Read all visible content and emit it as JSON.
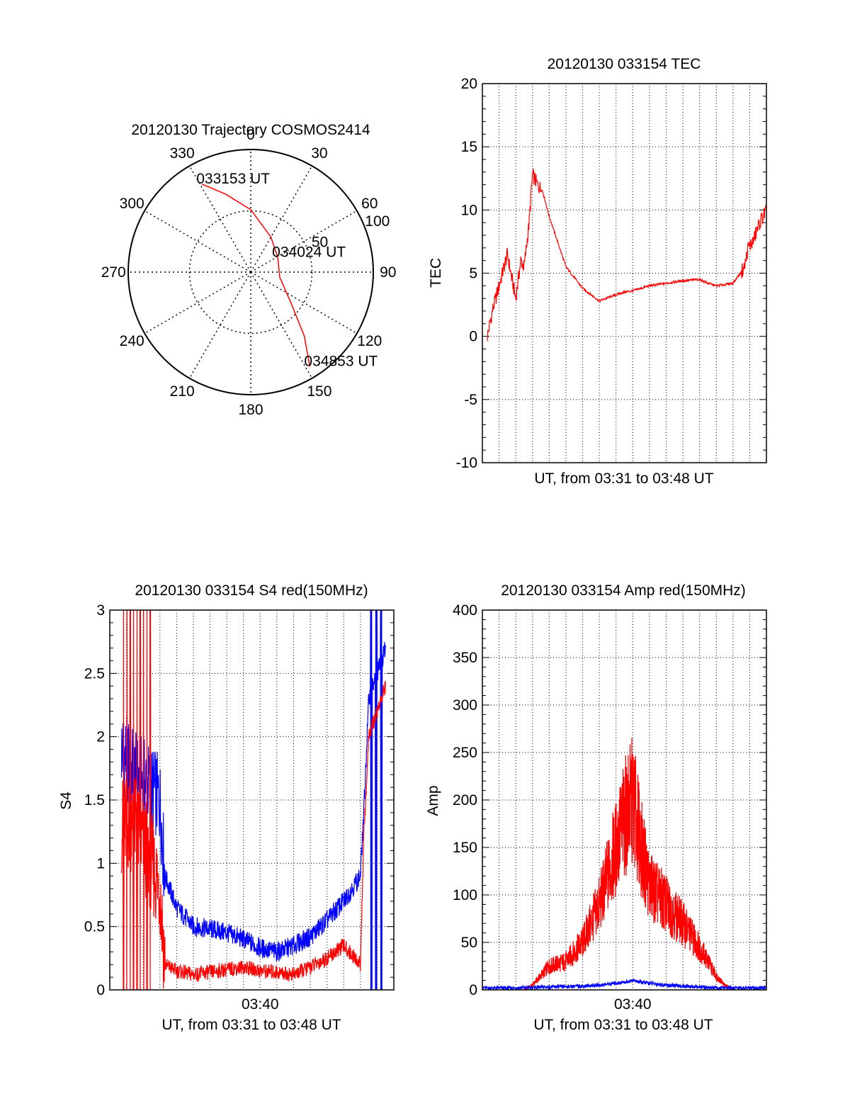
{
  "colors": {
    "primary": "#ff0000",
    "secondary": "#0000ff",
    "axis": "#000000",
    "grid": "#000000",
    "background": "#ffffff"
  },
  "chart_data": [
    {
      "type": "polar",
      "title": "20120130 Trajectory COSMOS2414",
      "azimuth_labels": [
        "0",
        "30",
        "60",
        "90",
        "120",
        "150",
        "180",
        "210",
        "240",
        "270",
        "300",
        "330"
      ],
      "radial_labels": [
        "50",
        "100"
      ],
      "radial_values": [
        50,
        100
      ],
      "grid": true,
      "series": [
        {
          "color": "#ff0000",
          "points": [
            {
              "az": 331,
              "r": 82
            },
            {
              "az": 342,
              "r": 67
            },
            {
              "az": 0,
              "r": 51
            },
            {
              "az": 30,
              "r": 33
            },
            {
              "az": 62,
              "r": 25
            },
            {
              "az": 100,
              "r": 24
            },
            {
              "az": 128,
              "r": 42
            },
            {
              "az": 140,
              "r": 68
            },
            {
              "az": 148,
              "r": 91
            }
          ]
        }
      ],
      "annotations": [
        {
          "text": "033153 UT",
          "az": 331,
          "r": 82
        },
        {
          "text": "034024 UT",
          "az": 62,
          "r": 25
        },
        {
          "text": "034853 UT",
          "az": 148,
          "r": 91
        }
      ]
    },
    {
      "type": "line",
      "title": "20120130 033154 TEC",
      "xlabel": "UT, from 03:31 to 03:48 UT",
      "ylabel": "TEC",
      "xlim": [
        0,
        17
      ],
      "ylim": [
        -10,
        20
      ],
      "yticks": [
        "-10",
        "-5",
        "0",
        "5",
        "10",
        "15",
        "20"
      ],
      "xticks": [],
      "grid": true,
      "series": [
        {
          "color": "#ff0000",
          "x": [
            0.3,
            0.6,
            0.9,
            1.2,
            1.5,
            1.7,
            2.0,
            2.3,
            2.5,
            2.8,
            3.0,
            3.3,
            3.6,
            4.0,
            4.5,
            5.0,
            6.0,
            7.0,
            8.0,
            8.5,
            9.0,
            10.0,
            11.0,
            12.0,
            13.0,
            13.5,
            14.0,
            15.0,
            15.7,
            15.9,
            16.2,
            16.6,
            17.0
          ],
          "y": [
            0,
            2,
            3.5,
            5,
            6.5,
            5,
            3,
            6,
            5.5,
            9,
            12.8,
            12,
            11.5,
            9.5,
            7.5,
            5.5,
            3.8,
            2.8,
            3.3,
            3.5,
            3.6,
            4.0,
            4.2,
            4.4,
            4.5,
            4.2,
            4.0,
            4.2,
            5.5,
            7,
            7.5,
            9,
            10
          ]
        }
      ]
    },
    {
      "type": "line",
      "title": "20120130 033154 S4 red(150MHz)",
      "xlabel": "UT, from 03:31 to 03:48 UT",
      "ylabel": "S4",
      "xlim": [
        0,
        17
      ],
      "ylim": [
        0,
        3
      ],
      "yticks": [
        "0",
        "0.5",
        "1",
        "1.5",
        "2",
        "2.5",
        "3"
      ],
      "xticks": [
        {
          "value": 9,
          "label": "03:40"
        }
      ],
      "grid": true,
      "series": [
        {
          "color": "#0000ff",
          "x": [
            0.7,
            1.5,
            2.5,
            3.0,
            3.3,
            4.0,
            5.0,
            6.0,
            7.0,
            8.0,
            9.0,
            10.0,
            11.0,
            12.0,
            13.0,
            14.0,
            15.0,
            15.2,
            15.5,
            16.0,
            16.5
          ],
          "y": [
            1.9,
            1.7,
            1.6,
            1.5,
            0.9,
            0.65,
            0.5,
            0.48,
            0.45,
            0.4,
            0.33,
            0.3,
            0.35,
            0.42,
            0.55,
            0.7,
            0.9,
            1.4,
            2.3,
            2.5,
            2.7
          ]
        },
        {
          "color": "#ff0000",
          "x": [
            0.7,
            1.5,
            2.5,
            3.0,
            3.3,
            4.0,
            5.0,
            6.0,
            7.0,
            8.0,
            9.0,
            10.0,
            11.0,
            12.0,
            13.0,
            14.0,
            15.0,
            15.2,
            15.5,
            16.0,
            16.5
          ],
          "y": [
            1.3,
            1.3,
            1.0,
            0.8,
            0.2,
            0.15,
            0.12,
            0.14,
            0.16,
            0.18,
            0.15,
            0.14,
            0.12,
            0.18,
            0.25,
            0.35,
            0.2,
            1.2,
            2.0,
            2.2,
            2.4
          ]
        }
      ]
    },
    {
      "type": "line",
      "title": "20120130 033154 Amp red(150MHz)",
      "xlabel": "UT, from 03:31 to 03:48 UT",
      "ylabel": "Amp",
      "xlim": [
        0,
        17
      ],
      "ylim": [
        0,
        400
      ],
      "yticks": [
        "0",
        "50",
        "100",
        "150",
        "200",
        "250",
        "300",
        "350",
        "400"
      ],
      "xticks": [
        {
          "value": 9,
          "label": "03:40"
        }
      ],
      "grid": true,
      "series": [
        {
          "color": "#ff0000",
          "x": [
            2.5,
            3.0,
            4.0,
            5.0,
            6.0,
            7.0,
            7.5,
            8.0,
            8.5,
            9.0,
            9.5,
            10.0,
            10.5,
            11.0,
            12.0,
            13.0,
            14.0,
            14.5,
            15.0
          ],
          "y": [
            0,
            5,
            25,
            30,
            50,
            90,
            120,
            150,
            180,
            200,
            150,
            110,
            100,
            90,
            70,
            45,
            15,
            5,
            0
          ]
        },
        {
          "color": "#0000ff",
          "x": [
            0,
            2,
            4,
            6,
            7,
            8,
            8.5,
            9,
            9.5,
            10,
            11,
            12,
            14,
            17
          ],
          "y": [
            2,
            2,
            3,
            4,
            5,
            7,
            8,
            10,
            8,
            7,
            5,
            4,
            2,
            2
          ]
        }
      ]
    }
  ]
}
